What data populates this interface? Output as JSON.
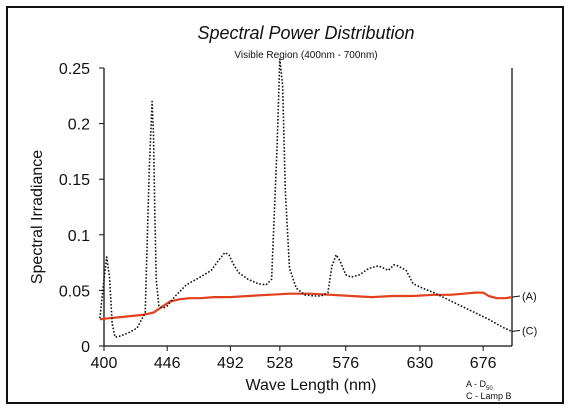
{
  "chart_data": {
    "type": "line",
    "title": "Spectral Power Distribution",
    "subtitle": "Visible Region (400nm - 700nm)",
    "xlabel": "Wave Length (nm)",
    "ylabel": "Spectral Irradiance",
    "xlim": [
      400,
      697
    ],
    "ylim": [
      0,
      0.25
    ],
    "x_ticks": [
      400,
      446,
      492,
      528,
      576,
      630,
      676
    ],
    "x_tick_labels": [
      "400",
      "446",
      "492",
      "528",
      "576",
      "630",
      "676"
    ],
    "y_ticks": [
      0,
      0.05,
      0.1,
      0.15,
      0.2,
      0.25
    ],
    "y_tick_labels": [
      "0",
      "0.05",
      "0.1",
      "0.15",
      "0.2",
      "0.25"
    ],
    "grid": false,
    "legend_lines": [
      "A - D50",
      "C - Lamp B"
    ],
    "series": [
      {
        "label": "(A)",
        "color": "#e2401c",
        "style": "solid",
        "x": [
          397,
          404,
          412,
          420,
          428,
          436,
          442,
          448,
          455,
          462,
          470,
          480,
          492,
          505,
          520,
          535,
          550,
          565,
          580,
          595,
          610,
          625,
          640,
          652,
          662,
          670,
          676,
          680,
          686,
          692,
          697
        ],
        "y": [
          0.024,
          0.025,
          0.026,
          0.027,
          0.028,
          0.03,
          0.035,
          0.04,
          0.042,
          0.043,
          0.043,
          0.044,
          0.044,
          0.045,
          0.046,
          0.047,
          0.047,
          0.046,
          0.045,
          0.044,
          0.045,
          0.045,
          0.046,
          0.046,
          0.047,
          0.048,
          0.048,
          0.045,
          0.043,
          0.043,
          0.044
        ]
      },
      {
        "label": "(C)",
        "color": "#111111",
        "style": "dotted",
        "x": [
          397,
          400,
          402,
          404,
          406,
          408,
          412,
          418,
          424,
          430,
          433,
          435,
          436,
          437,
          438,
          440,
          443,
          446,
          452,
          460,
          470,
          478,
          484,
          488,
          491,
          494,
          498,
          505,
          512,
          518,
          522,
          526,
          528,
          530,
          532,
          535,
          540,
          546,
          553,
          558,
          563,
          566,
          569,
          572,
          576,
          580,
          586,
          593,
          600,
          607,
          611,
          614,
          617,
          620,
          625,
          632,
          640,
          650,
          660,
          670,
          680,
          690,
          697
        ],
        "y": [
          0.025,
          0.06,
          0.08,
          0.062,
          0.02,
          0.008,
          0.009,
          0.012,
          0.016,
          0.03,
          0.16,
          0.22,
          0.19,
          0.12,
          0.06,
          0.036,
          0.034,
          0.036,
          0.045,
          0.055,
          0.062,
          0.068,
          0.078,
          0.084,
          0.082,
          0.074,
          0.066,
          0.06,
          0.056,
          0.055,
          0.06,
          0.18,
          0.258,
          0.235,
          0.14,
          0.07,
          0.052,
          0.046,
          0.045,
          0.045,
          0.048,
          0.072,
          0.082,
          0.076,
          0.064,
          0.062,
          0.064,
          0.07,
          0.072,
          0.068,
          0.073,
          0.072,
          0.07,
          0.068,
          0.056,
          0.052,
          0.048,
          0.042,
          0.036,
          0.03,
          0.024,
          0.017,
          0.013
        ]
      }
    ]
  }
}
